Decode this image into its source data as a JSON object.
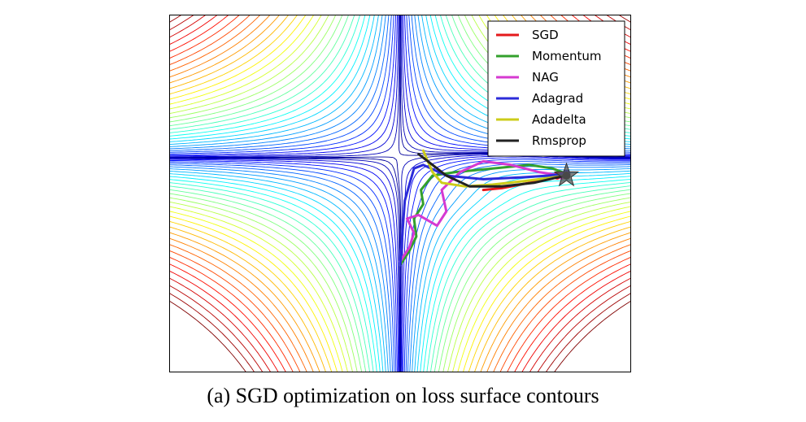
{
  "chart_data": {
    "type": "line",
    "title": "",
    "xlabel": "",
    "ylabel": "",
    "grid": false,
    "legend_position": "top-right",
    "background": "contour plot of a saddle-shaped loss surface (jet colormap)",
    "series": [
      {
        "name": "SGD",
        "color": "#e41a1c",
        "x": [
          0.68,
          0.72,
          0.76,
          0.8,
          0.84
        ],
        "y": [
          0.49,
          0.485,
          0.475,
          0.465,
          0.45
        ]
      },
      {
        "name": "Momentum",
        "color": "#33a02c",
        "x": [
          0.5,
          0.52,
          0.535,
          0.53,
          0.55,
          0.545,
          0.57,
          0.62,
          0.7,
          0.78,
          0.83,
          0.86
        ],
        "y": [
          0.7,
          0.66,
          0.62,
          0.57,
          0.53,
          0.49,
          0.45,
          0.44,
          0.43,
          0.42,
          0.43,
          0.445
        ]
      },
      {
        "name": "NAG",
        "color": "#d63ad1",
        "x": [
          0.5,
          0.52,
          0.53,
          0.515,
          0.54,
          0.58,
          0.6,
          0.59,
          0.63,
          0.68,
          0.74,
          0.8,
          0.85
        ],
        "y": [
          0.69,
          0.65,
          0.61,
          0.57,
          0.56,
          0.59,
          0.55,
          0.49,
          0.44,
          0.41,
          0.42,
          0.44,
          0.45
        ]
      },
      {
        "name": "Adagrad",
        "color": "#2b2bd9",
        "x": [
          0.5,
          0.51,
          0.53,
          0.55,
          0.6,
          0.68,
          0.76,
          0.82,
          0.86
        ],
        "y": [
          0.7,
          0.52,
          0.43,
          0.42,
          0.45,
          0.46,
          0.455,
          0.45,
          0.445
        ]
      },
      {
        "name": "Adadelta",
        "color": "#cccc1a",
        "x": [
          0.55,
          0.57,
          0.59,
          0.64,
          0.7,
          0.77,
          0.83,
          0.86
        ],
        "y": [
          0.38,
          0.44,
          0.47,
          0.48,
          0.475,
          0.465,
          0.455,
          0.45
        ]
      },
      {
        "name": "Rmsprop",
        "color": "#222222",
        "x": [
          0.54,
          0.57,
          0.6,
          0.65,
          0.72,
          0.79,
          0.84,
          0.86
        ],
        "y": [
          0.39,
          0.42,
          0.45,
          0.48,
          0.48,
          0.47,
          0.455,
          0.45
        ]
      }
    ],
    "minimum_marker": {
      "shape": "star",
      "x": 0.86,
      "y": 0.45,
      "color": "#555555"
    },
    "xlim": [
      0,
      1
    ],
    "ylim": [
      0,
      1
    ]
  },
  "caption": "(a) SGD optimization on loss surface contours"
}
